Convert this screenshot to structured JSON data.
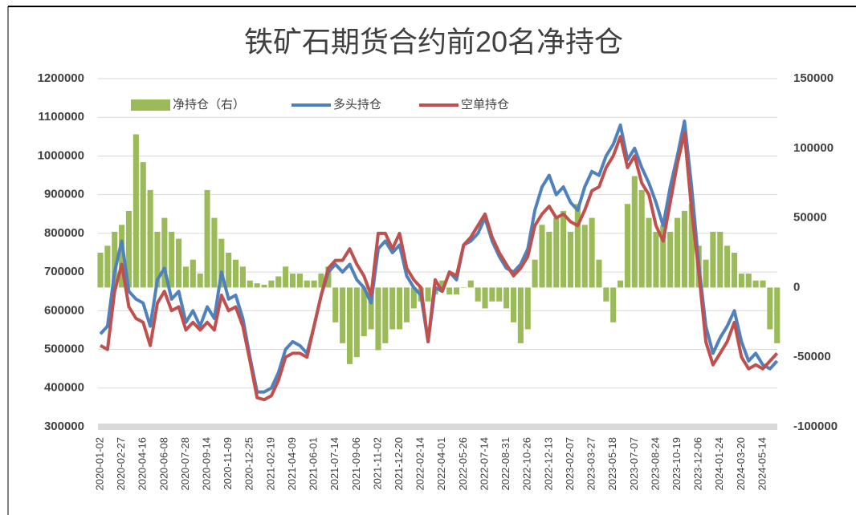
{
  "chart_data": {
    "type": "combo",
    "title": "铁矿石期货合约前20名净持仓",
    "categories": [
      "2020-01-02",
      null,
      null,
      "2020-02-27",
      null,
      null,
      "2020-04-16",
      null,
      null,
      "2020-06-08",
      null,
      null,
      "2020-07-28",
      null,
      null,
      "2020-09-14",
      null,
      null,
      "2020-11-09",
      null,
      null,
      "2020-12-25",
      null,
      null,
      "2021-02-19",
      null,
      null,
      "2021-04-09",
      null,
      null,
      "2021-06-01",
      null,
      null,
      "2021-07-14",
      null,
      null,
      "2021-09-06",
      null,
      null,
      "2021-11-02",
      null,
      null,
      "2021-12-20",
      null,
      null,
      "2022-02-14",
      null,
      null,
      "2022-04-01",
      null,
      null,
      "2022-05-26",
      null,
      null,
      "2022-07-14",
      null,
      null,
      "2022-08-31",
      null,
      null,
      "2022-10-26",
      null,
      null,
      "2022-12-13",
      null,
      null,
      "2023-02-07",
      null,
      null,
      "2023-03-27",
      null,
      null,
      "2023-05-18",
      null,
      null,
      "2023-07-07",
      null,
      null,
      "2023-08-24",
      null,
      null,
      "2023-10-19",
      null,
      null,
      "2023-12-06",
      null,
      null,
      "2024-01-24",
      null,
      null,
      "2024-03-20",
      null,
      null,
      "2024-05-14",
      null,
      null
    ],
    "series": [
      {
        "name": "净持仓（右）",
        "type": "bar",
        "axis": "y2",
        "color": "#9bbb59",
        "values": [
          25000,
          30000,
          40000,
          45000,
          55000,
          110000,
          90000,
          70000,
          40000,
          50000,
          40000,
          35000,
          15000,
          20000,
          10000,
          70000,
          50000,
          35000,
          25000,
          20000,
          15000,
          5000,
          3000,
          2000,
          5000,
          8000,
          15000,
          10000,
          10000,
          5000,
          5000,
          10000,
          15000,
          -25000,
          -40000,
          -55000,
          -50000,
          -35000,
          -30000,
          -45000,
          -40000,
          -30000,
          -30000,
          -25000,
          -15000,
          -10000,
          -10000,
          -5000,
          5000,
          -5000,
          -5000,
          0,
          5000,
          -10000,
          -15000,
          -10000,
          -10000,
          -15000,
          -25000,
          -40000,
          -30000,
          20000,
          45000,
          40000,
          50000,
          55000,
          40000,
          60000,
          45000,
          50000,
          20000,
          -10000,
          -25000,
          5000,
          60000,
          80000,
          70000,
          50000,
          40000,
          45000,
          40000,
          50000,
          55000,
          60000,
          30000,
          20000,
          40000,
          40000,
          30000,
          25000,
          10000,
          10000,
          5000,
          5000,
          -30000,
          -40000
        ]
      },
      {
        "name": "多头持仓",
        "type": "line",
        "color": "#4f81bd",
        "values": [
          540000,
          560000,
          700000,
          780000,
          650000,
          630000,
          620000,
          560000,
          680000,
          710000,
          630000,
          650000,
          570000,
          600000,
          560000,
          610000,
          580000,
          700000,
          630000,
          640000,
          580000,
          480000,
          390000,
          390000,
          400000,
          440000,
          500000,
          520000,
          510000,
          490000,
          560000,
          640000,
          700000,
          720000,
          700000,
          720000,
          680000,
          660000,
          620000,
          760000,
          780000,
          750000,
          770000,
          690000,
          660000,
          640000,
          520000,
          660000,
          650000,
          700000,
          680000,
          770000,
          780000,
          800000,
          840000,
          780000,
          740000,
          710000,
          700000,
          720000,
          760000,
          860000,
          920000,
          950000,
          900000,
          920000,
          880000,
          860000,
          920000,
          960000,
          950000,
          1000000,
          1030000,
          1080000,
          990000,
          1020000,
          970000,
          930000,
          880000,
          820000,
          920000,
          1000000,
          1090000,
          920000,
          720000,
          560000,
          490000,
          530000,
          560000,
          600000,
          520000,
          470000,
          490000,
          460000,
          450000,
          470000
        ]
      },
      {
        "name": "空单持仓",
        "type": "line",
        "color": "#c0504d",
        "values": [
          510000,
          500000,
          650000,
          720000,
          610000,
          580000,
          570000,
          510000,
          620000,
          650000,
          600000,
          610000,
          550000,
          570000,
          550000,
          570000,
          550000,
          640000,
          600000,
          610000,
          560000,
          470000,
          375000,
          370000,
          380000,
          420000,
          480000,
          490000,
          490000,
          480000,
          560000,
          640000,
          710000,
          730000,
          730000,
          760000,
          720000,
          690000,
          640000,
          800000,
          800000,
          760000,
          800000,
          710000,
          680000,
          660000,
          520000,
          680000,
          650000,
          700000,
          690000,
          770000,
          790000,
          820000,
          850000,
          790000,
          750000,
          720000,
          690000,
          710000,
          740000,
          820000,
          850000,
          870000,
          840000,
          850000,
          830000,
          820000,
          860000,
          910000,
          920000,
          970000,
          1000000,
          1050000,
          970000,
          1000000,
          930000,
          900000,
          820000,
          780000,
          880000,
          980000,
          1060000,
          860000,
          700000,
          520000,
          460000,
          490000,
          520000,
          570000,
          480000,
          450000,
          460000,
          450000,
          470000,
          490000
        ]
      }
    ],
    "ylim": [
      300000,
      1200000
    ],
    "yticks": [
      300000,
      400000,
      500000,
      600000,
      700000,
      800000,
      900000,
      1000000,
      1100000,
      1200000
    ],
    "y2lim": [
      -100000,
      150000
    ],
    "y2ticks": [
      -100000,
      -50000,
      0,
      50000,
      100000,
      150000
    ],
    "grid": true,
    "legend": "top"
  }
}
